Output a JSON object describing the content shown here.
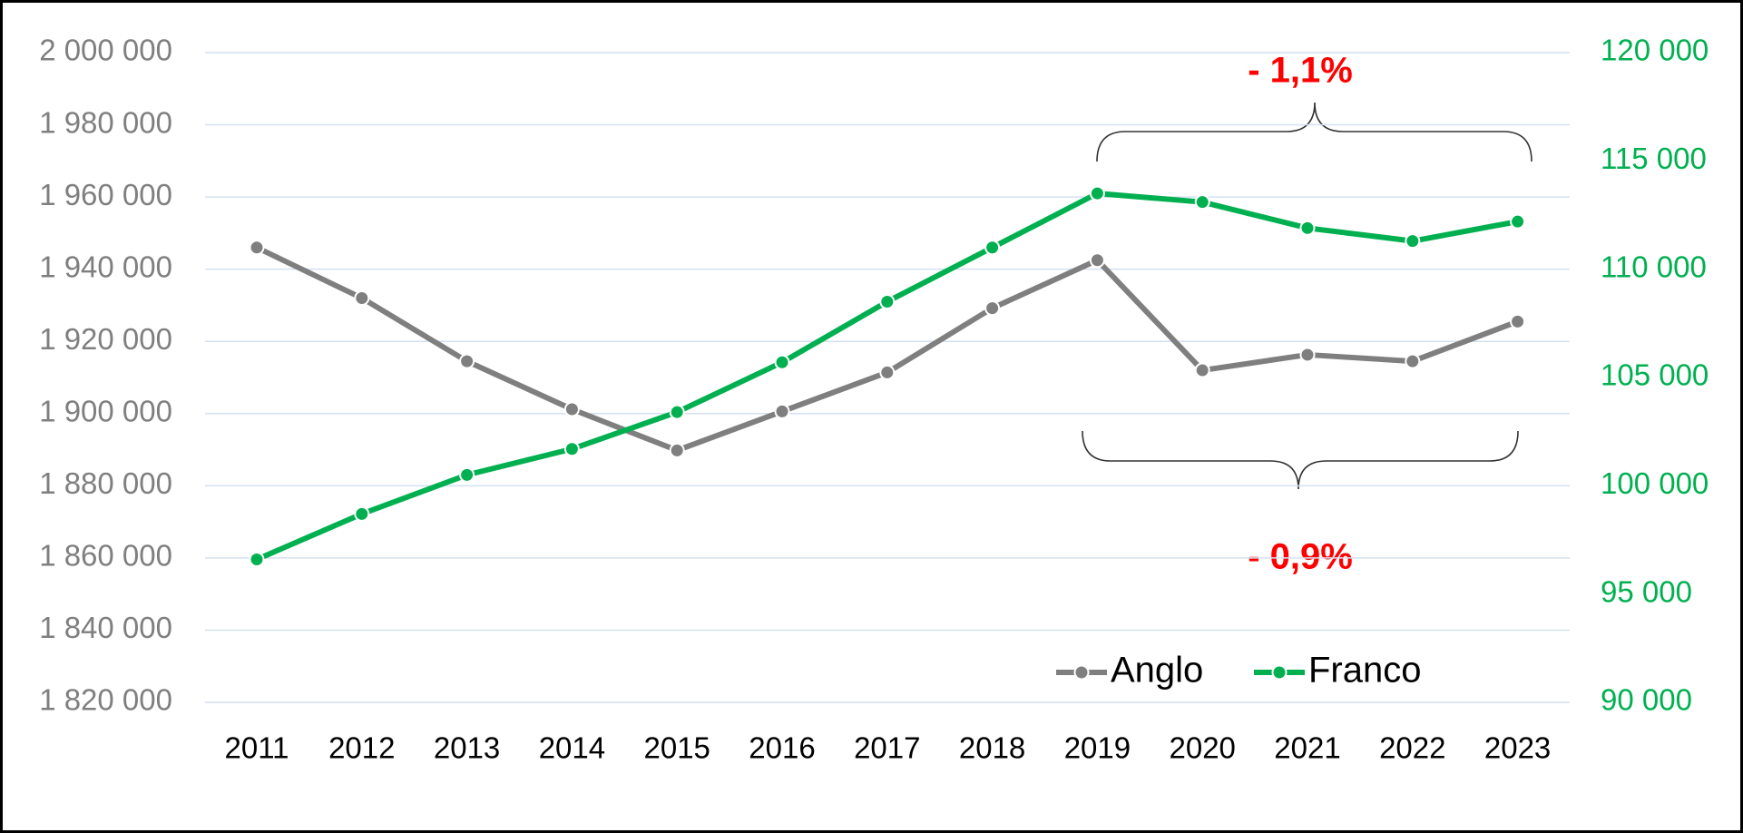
{
  "chart_data": {
    "type": "line",
    "categories": [
      "2011",
      "2012",
      "2013",
      "2014",
      "2015",
      "2016",
      "2017",
      "2018",
      "2019",
      "2020",
      "2021",
      "2022",
      "2023"
    ],
    "series": [
      {
        "name": "Anglo",
        "color": "#7f7f7f",
        "values": [
          1946000,
          1932000,
          1914500,
          1901200,
          1889800,
          1900600,
          1911400,
          1929200,
          1942500,
          1912000,
          1916300,
          1914500,
          1925500
        ]
      },
      {
        "name": "Franco",
        "color": "#00b050",
        "axis": "y2",
        "values": [
          96600,
          98700,
          100500,
          101700,
          103400,
          105700,
          108500,
          111000,
          113500,
          113100,
          111900,
          111300,
          112200
        ]
      }
    ],
    "ylim": [
      1820000,
      2000000
    ],
    "yticks": [
      {
        "value": 1820000,
        "label": "1 820 000"
      },
      {
        "value": 1840000,
        "label": "1 840 000"
      },
      {
        "value": 1860000,
        "label": "1 860 000"
      },
      {
        "value": 1880000,
        "label": "1 880 000"
      },
      {
        "value": 1900000,
        "label": "1 900 000"
      },
      {
        "value": 1920000,
        "label": "1 920 000"
      },
      {
        "value": 1940000,
        "label": "1 940 000"
      },
      {
        "value": 1960000,
        "label": "1 960 000"
      },
      {
        "value": 1980000,
        "label": "1 980 000"
      },
      {
        "value": 2000000,
        "label": "2 000 000"
      }
    ],
    "y2lim": [
      90000,
      120000
    ],
    "y2ticks": [
      {
        "value": 90000,
        "label": "90 000"
      },
      {
        "value": 95000,
        "label": "95 000"
      },
      {
        "value": 100000,
        "label": "100 000"
      },
      {
        "value": 105000,
        "label": "105 000"
      },
      {
        "value": 110000,
        "label": "110 000"
      },
      {
        "value": 115000,
        "label": "115 000"
      },
      {
        "value": 120000,
        "label": "120 000"
      }
    ],
    "grid": true,
    "legend": "bottom-right",
    "annotations": [
      "- 1,1%",
      "- 0,9%"
    ],
    "annotation_color": "#ff0000"
  }
}
